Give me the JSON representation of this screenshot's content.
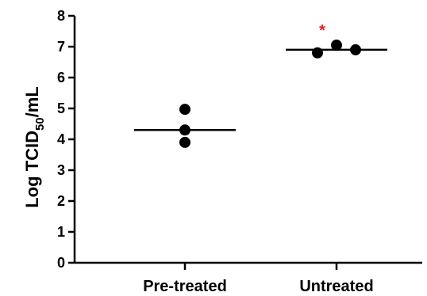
{
  "chart_data": {
    "type": "scatter",
    "title": "",
    "ylabel": {
      "prefix": "Log TCID",
      "subscript": "50",
      "suffix": "/mL"
    },
    "xlabel": "",
    "ylim": [
      0,
      8
    ],
    "yticks": [
      "0",
      "1",
      "2",
      "3",
      "4",
      "5",
      "6",
      "7",
      "8"
    ],
    "categories": [
      "Pre-treated",
      "Untreated"
    ],
    "groups": [
      {
        "category": "Pre-treated",
        "points": [
          {
            "offset": 0,
            "y": 4.97
          },
          {
            "offset": 0,
            "y": 4.3
          },
          {
            "offset": 0,
            "y": 3.9
          }
        ],
        "mean": 4.3
      },
      {
        "category": "Untreated",
        "points": [
          {
            "offset": -1,
            "y": 6.8
          },
          {
            "offset": 0,
            "y": 7.05
          },
          {
            "offset": 1,
            "y": 6.9
          }
        ],
        "mean": 6.9
      }
    ],
    "annotations": [
      {
        "text": "*",
        "category": "Untreated",
        "color": "#e0242a"
      }
    ],
    "grid": false,
    "legend": "none",
    "colors": {
      "marker": "#000000",
      "axis": "#000000",
      "annotation": "#e0242a"
    }
  }
}
